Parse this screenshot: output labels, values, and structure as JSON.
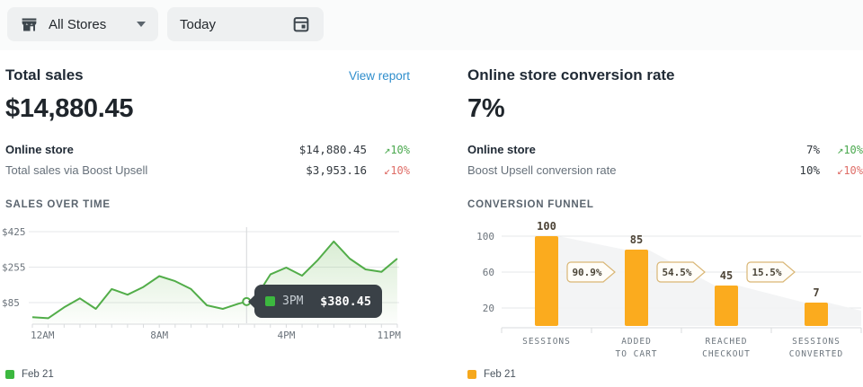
{
  "topbar": {
    "store_selector_label": "All Stores",
    "date_selector_label": "Today"
  },
  "left_panel": {
    "title": "Total sales",
    "link": "View report",
    "big_value": "$14,880.45",
    "rows": [
      {
        "label": "Online store",
        "value": "$14,880.45",
        "delta": "10%",
        "direction": "up"
      },
      {
        "label": "Total sales via Boost Upsell",
        "value": "$3,953.16",
        "delta": "10%",
        "direction": "down"
      }
    ],
    "section_title": "SALES OVER TIME",
    "legend_label": "Feb 21"
  },
  "right_panel": {
    "title": "Online store conversion rate",
    "big_value": "7%",
    "rows": [
      {
        "label": "Online store",
        "value": "7%",
        "delta": "10%",
        "direction": "up"
      },
      {
        "label": "Boost Upsell conversion rate",
        "value": "10%",
        "delta": "10%",
        "direction": "down"
      }
    ],
    "section_title": "CONVERSION FUNNEL",
    "legend_label": "Feb 21"
  },
  "tooltip": {
    "series": "Feb 21",
    "time": "3PM",
    "value": "$380.45"
  },
  "glyphs": {
    "arrow_up": "↗",
    "arrow_down": "↙"
  },
  "chart_data": [
    {
      "type": "line",
      "title": "SALES OVER TIME",
      "series": [
        {
          "name": "Feb 21",
          "values": [
            15,
            10,
            62,
            105,
            55,
            150,
            123,
            160,
            212,
            188,
            150,
            72,
            55,
            80,
            100,
            220,
            253,
            214,
            290,
            378,
            296,
            244,
            232,
            296
          ]
        }
      ],
      "yticks": [
        {
          "value": 425,
          "label": "$425"
        },
        {
          "value": 255,
          "label": "$255"
        },
        {
          "value": 85,
          "label": "$85"
        }
      ],
      "xticks": [
        {
          "hour": 0,
          "label": "12AM"
        },
        {
          "hour": 8,
          "label": "8AM"
        },
        {
          "hour": 16,
          "label": "4PM"
        },
        {
          "hour": 23,
          "label": "11PM"
        }
      ],
      "ylim": [
        0,
        470
      ],
      "grid": "horizontal",
      "hover": {
        "hour": 13.5,
        "label": "3PM",
        "value": "$380.45"
      },
      "legend": {
        "label": "Feb 21",
        "position": "bottom-left"
      }
    },
    {
      "type": "bar",
      "title": "CONVERSION FUNNEL",
      "categories": [
        [
          "SESSIONS"
        ],
        [
          "ADDED",
          "TO CART"
        ],
        [
          "REACHED",
          "CHECKOUT"
        ],
        [
          "SESSIONS",
          "CONVERTED"
        ]
      ],
      "values": [
        100,
        85,
        45,
        7
      ],
      "value_labels": [
        "100",
        "85",
        "45",
        "7"
      ],
      "step_badges": [
        "90.9%",
        "54.5%",
        "15.5%"
      ],
      "yticks": [
        100,
        60,
        20
      ],
      "ylim": [
        0,
        110
      ],
      "grid": "horizontal",
      "legend": {
        "label": "Feb 21",
        "position": "bottom-left"
      }
    }
  ],
  "colors": {
    "accent_green": "#52ad49",
    "legend_green": "#3cb83f",
    "accent_orange": "#fbab1e",
    "delta_up": "#4ba94f",
    "delta_down": "#df6e68",
    "link_blue": "#2f8ecc",
    "tooltip_bg": "#3a4147",
    "badge_border": "#d9b675",
    "badge_fill": "#fffdf8",
    "funnel_fill": "#f2f3f4",
    "grid": "#e5e7e9",
    "axis": "#d8dbdd",
    "crosshair": "#d5d8da",
    "text_dark": "#20262b",
    "text_subdued": "#66707a"
  }
}
